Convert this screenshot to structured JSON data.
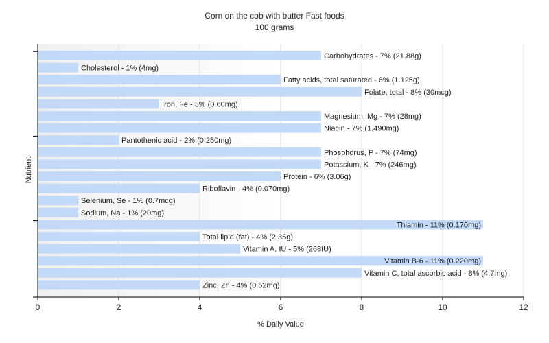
{
  "chart_data": {
    "type": "bar",
    "orientation": "horizontal",
    "title": "Corn on the cob with butter Fast foods",
    "subtitle": "100 grams",
    "xlabel": "% Daily Value",
    "ylabel": "Nutrient",
    "xlim": [
      0,
      12
    ],
    "xticks": [
      0,
      2,
      4,
      6,
      8,
      10,
      12
    ],
    "grid": true,
    "colors": {
      "bar": "#c2d9f7",
      "grid": "#dddddd",
      "axis": "#000000"
    },
    "categories": [
      "Carbohydrates",
      "Cholesterol",
      "Fatty acids, total saturated",
      "Folate, total",
      "Iron, Fe",
      "Magnesium, Mg",
      "Niacin",
      "Pantothenic acid",
      "Phosphorus, P",
      "Potassium, K",
      "Protein",
      "Riboflavin",
      "Selenium, Se",
      "Sodium, Na",
      "Thiamin",
      "Total lipid (fat)",
      "Vitamin A, IU",
      "Vitamin B-6",
      "Vitamin C, total ascorbic acid",
      "Zinc, Zn"
    ],
    "values": [
      7,
      1,
      6,
      8,
      3,
      7,
      7,
      2,
      7,
      7,
      6,
      4,
      1,
      1,
      11,
      4,
      5,
      11,
      8,
      4
    ],
    "labels": [
      "Carbohydrates - 7% (21.88g)",
      "Cholesterol - 1% (4mg)",
      "Fatty acids, total saturated - 6% (1.125g)",
      "Folate, total - 8% (30mcg)",
      "Iron, Fe - 3% (0.60mg)",
      "Magnesium, Mg - 7% (28mg)",
      "Niacin - 7% (1.490mg)",
      "Pantothenic acid - 2% (0.250mg)",
      "Phosphorus, P - 7% (74mg)",
      "Potassium, K - 7% (246mg)",
      "Protein - 6% (3.06g)",
      "Riboflavin - 4% (0.070mg)",
      "Selenium, Se - 1% (0.7mcg)",
      "Sodium, Na - 1% (20mg)",
      "Thiamin - 11% (0.170mg)",
      "Total lipid (fat) - 4% (2.35g)",
      "Vitamin A, IU - 5% (268IU)",
      "Vitamin B-6 - 11% (0.220mg)",
      "Vitamin C, total ascorbic acid - 8% (4.7mg)",
      "Zinc, Zn - 4% (0.62mg)"
    ]
  }
}
